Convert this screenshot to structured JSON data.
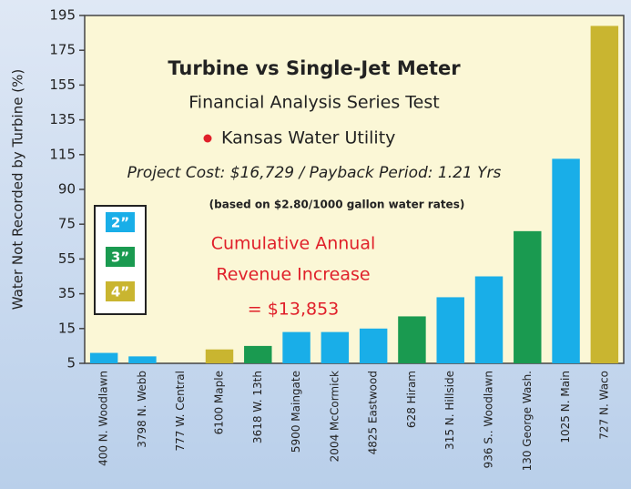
{
  "chart_data": {
    "type": "bar",
    "title": "Turbine vs Single-Jet Meter",
    "subtitle": "Financial Analysis Series Test",
    "location": "Kansas Water Utility",
    "project_line": "Project Cost: $16,729 / Payback Period: 1.21 Yrs",
    "rate_note": "(based on $2.80/1000 gallon water rates)",
    "annotation": [
      "Cumulative Annual",
      "Revenue Increase",
      "= $13,853"
    ],
    "y_label": "Water Not Recorded by Turbine (%)",
    "categories": [
      "400 N. Woodlawn",
      "3798 N. Webb",
      "777 W. Central",
      "6100 Maple",
      "3618 W. 13th",
      "5900 Maingate",
      "2004 McCormick",
      "4825 Eastwood",
      "628 Hiram",
      "315 N. Hillside",
      "936 S.. Woodlawn",
      "130 George Wash.",
      "1025 N. Main",
      "727 N. Waco"
    ],
    "values": [
      8,
      7,
      5,
      9,
      10,
      14,
      14,
      15,
      22,
      33,
      45,
      71,
      112,
      189
    ],
    "colors": [
      "#19aee8",
      "#19aee8",
      "#19aee8",
      "#c9b530",
      "#1a9a50",
      "#19aee8",
      "#19aee8",
      "#19aee8",
      "#1a9a50",
      "#19aee8",
      "#19aee8",
      "#1a9a50",
      "#19aee8",
      "#c9b530"
    ],
    "legend": [
      {
        "name": "2”",
        "color": "#19aee8"
      },
      {
        "name": "3”",
        "color": "#1a9a50"
      },
      {
        "name": "4”",
        "color": "#c9b530"
      }
    ],
    "ylim": [
      5,
      195
    ],
    "yticks": [
      5,
      15,
      35,
      55,
      75,
      90,
      115,
      135,
      155,
      175,
      195
    ]
  }
}
